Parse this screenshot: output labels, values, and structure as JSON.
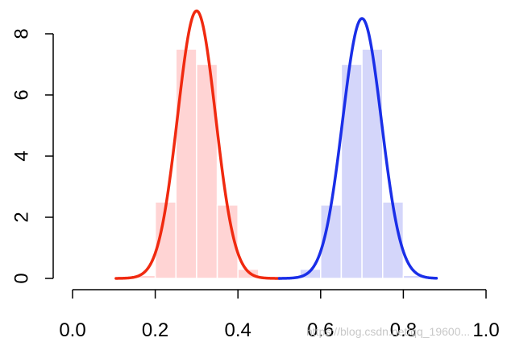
{
  "chart_data": {
    "type": "bar",
    "title": "",
    "xlabel": "",
    "ylabel": "",
    "xlim": [
      0.0,
      1.0
    ],
    "ylim": [
      0,
      8
    ],
    "x_ticks": [
      "0.0",
      "0.2",
      "0.4",
      "0.6",
      "0.8",
      "1.0"
    ],
    "y_ticks": [
      "0",
      "2",
      "4",
      "6",
      "8"
    ],
    "grid": false,
    "legend": "none",
    "bin_width": 0.05,
    "series": [
      {
        "kind": "histogram",
        "color": "#ffd4d4",
        "bins": [
          {
            "x0": 0.15,
            "x1": 0.2,
            "value": 0.1
          },
          {
            "x0": 0.2,
            "x1": 0.25,
            "value": 2.5
          },
          {
            "x0": 0.25,
            "x1": 0.3,
            "value": 7.5
          },
          {
            "x0": 0.3,
            "x1": 0.35,
            "value": 7.0
          },
          {
            "x0": 0.35,
            "x1": 0.4,
            "value": 2.4
          },
          {
            "x0": 0.4,
            "x1": 0.45,
            "value": 0.3
          }
        ]
      },
      {
        "kind": "histogram",
        "color": "#d4d6fa",
        "bins": [
          {
            "x0": 0.55,
            "x1": 0.6,
            "value": 0.3
          },
          {
            "x0": 0.6,
            "x1": 0.65,
            "value": 2.4
          },
          {
            "x0": 0.65,
            "x1": 0.7,
            "value": 7.0
          },
          {
            "x0": 0.7,
            "x1": 0.75,
            "value": 7.5
          },
          {
            "x0": 0.75,
            "x1": 0.8,
            "value": 2.5
          },
          {
            "x0": 0.8,
            "x1": 0.85,
            "value": 0.1
          }
        ]
      },
      {
        "kind": "density",
        "color": "#f02a10",
        "mean": 0.3,
        "sd": 0.046,
        "peak": 8.75,
        "x_range": [
          0.105,
          0.5
        ]
      },
      {
        "kind": "density",
        "color": "#1a2fe8",
        "mean": 0.7,
        "sd": 0.047,
        "peak": 8.5,
        "x_range": [
          0.5,
          0.88
        ]
      }
    ]
  },
  "watermark": "https://blog.csdn.net/qq_19600..."
}
